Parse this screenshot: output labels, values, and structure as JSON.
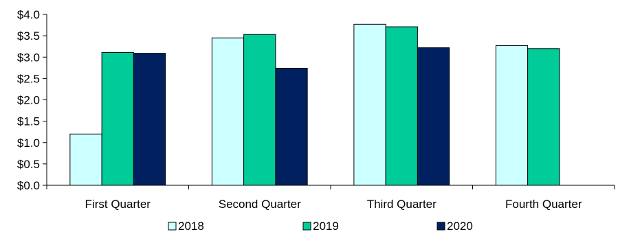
{
  "chart_data": {
    "type": "bar",
    "categories": [
      "First Quarter",
      "Second Quarter",
      "Third Quarter",
      "Fourth Quarter"
    ],
    "series": [
      {
        "name": "2018",
        "color": "#CCFFFF",
        "values": [
          1.2,
          3.45,
          3.77,
          3.27
        ]
      },
      {
        "name": "2019",
        "color": "#00CC99",
        "values": [
          3.11,
          3.53,
          3.71,
          3.2
        ]
      },
      {
        "name": "2020",
        "color": "#002060",
        "values": [
          3.09,
          2.74,
          3.22,
          null
        ]
      }
    ],
    "yticks": [
      "$0.0",
      "$0.5",
      "$1.0",
      "$1.5",
      "$2.0",
      "$2.5",
      "$3.0",
      "$3.5",
      "$4.0"
    ],
    "ylim": [
      0,
      4
    ],
    "title": "",
    "xlabel": "",
    "ylabel": "",
    "grid": false,
    "legend_position": "bottom"
  }
}
